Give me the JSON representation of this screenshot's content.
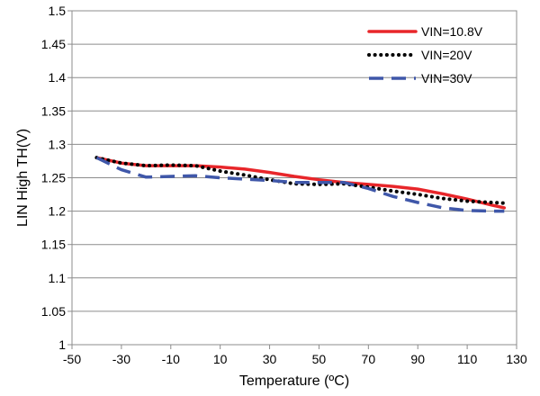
{
  "chart_data": {
    "type": "line",
    "title": "",
    "xlabel": "Temperature (ºC)",
    "ylabel": "LIN High TH(V)",
    "xlim": [
      -50,
      130
    ],
    "ylim": [
      1,
      1.5
    ],
    "x_ticks": [
      -50,
      -30,
      -10,
      10,
      30,
      50,
      70,
      90,
      110,
      130
    ],
    "x_tick_labels": [
      "-50",
      "-30",
      "-10",
      "10",
      "30",
      "50",
      "70",
      "90",
      "110",
      "130"
    ],
    "y_ticks": [
      1,
      1.05,
      1.1,
      1.15,
      1.2,
      1.25,
      1.3,
      1.35,
      1.4,
      1.45,
      1.5
    ],
    "y_tick_labels": [
      "1",
      "1.05",
      "1.1",
      "1.15",
      "1.2",
      "1.25",
      "1.3",
      "1.35",
      "1.4",
      "1.45",
      "1.5"
    ],
    "grid": "horizontal",
    "legend_position": "top-right",
    "series": [
      {
        "name": "VIN=10.8V",
        "color": "#e8262a",
        "style": "solid",
        "x": [
          -40,
          -30,
          -20,
          -10,
          0,
          10,
          20,
          30,
          40,
          50,
          60,
          70,
          80,
          90,
          100,
          110,
          120,
          125
        ],
        "y": [
          1.28,
          1.272,
          1.268,
          1.268,
          1.268,
          1.266,
          1.263,
          1.258,
          1.252,
          1.247,
          1.243,
          1.24,
          1.237,
          1.233,
          1.226,
          1.218,
          1.209,
          1.205
        ]
      },
      {
        "name": "VIN=20V",
        "color": "#000000",
        "style": "dotted",
        "x": [
          -40,
          -30,
          -20,
          -10,
          0,
          10,
          20,
          30,
          40,
          50,
          60,
          70,
          80,
          90,
          100,
          110,
          120,
          125
        ],
        "y": [
          1.28,
          1.272,
          1.268,
          1.269,
          1.268,
          1.26,
          1.254,
          1.247,
          1.241,
          1.24,
          1.241,
          1.236,
          1.23,
          1.225,
          1.219,
          1.215,
          1.213,
          1.212
        ]
      },
      {
        "name": "VIN=30V",
        "color": "#3f57a9",
        "style": "dashed",
        "x": [
          -40,
          -30,
          -20,
          -10,
          0,
          10,
          20,
          30,
          40,
          50,
          60,
          70,
          80,
          90,
          100,
          110,
          120,
          125
        ],
        "y": [
          1.28,
          1.262,
          1.251,
          1.252,
          1.253,
          1.25,
          1.248,
          1.246,
          1.243,
          1.243,
          1.243,
          1.234,
          1.222,
          1.213,
          1.205,
          1.201,
          1.2,
          1.2
        ]
      }
    ]
  }
}
